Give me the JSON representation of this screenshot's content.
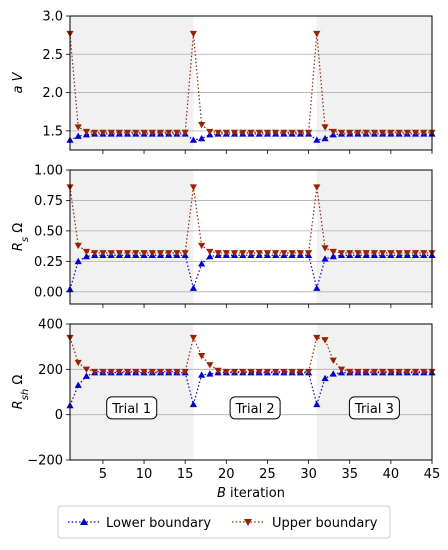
{
  "chart_data": {
    "type": "line",
    "xlabel_italic": "B",
    "xlabel_rest": " iteration",
    "xlim": [
      1,
      45
    ],
    "xticks": [
      5,
      10,
      15,
      20,
      25,
      30,
      35,
      40,
      45
    ],
    "x": [
      1,
      2,
      3,
      4,
      5,
      6,
      7,
      8,
      9,
      10,
      11,
      12,
      13,
      14,
      15,
      16,
      17,
      18,
      19,
      20,
      21,
      22,
      23,
      24,
      25,
      26,
      27,
      28,
      29,
      30,
      31,
      32,
      33,
      34,
      35,
      36,
      37,
      38,
      39,
      40,
      41,
      42,
      43,
      44,
      45
    ],
    "trials": [
      {
        "label": "Trial 1",
        "x_start": 1,
        "x_end": 16,
        "shaded": true
      },
      {
        "label": "Trial 2",
        "x_start": 16,
        "x_end": 31,
        "shaded": false
      },
      {
        "label": "Trial 3",
        "x_start": 31,
        "x_end": 45,
        "shaded": true
      }
    ],
    "legend": {
      "placement": "bottom",
      "entries": [
        {
          "label": "Lower boundary",
          "color": "#0000cc",
          "marker": "triangle-up"
        },
        {
          "label": "Upper boundary",
          "color": "#992200",
          "marker": "triangle-down"
        }
      ]
    },
    "panels": [
      {
        "ylabel": "a V",
        "ylim": [
          1.25,
          3.0
        ],
        "yticks": [
          1.5,
          2.0,
          2.5,
          3.0
        ],
        "ytick_labels": [
          "1.5",
          "2.0",
          "2.5",
          "3.0"
        ],
        "grid": true,
        "series": [
          {
            "legend_index": 0,
            "values": [
              1.38,
              1.43,
              1.45,
              1.46,
              1.46,
              1.46,
              1.46,
              1.46,
              1.46,
              1.46,
              1.46,
              1.46,
              1.46,
              1.46,
              1.46,
              1.38,
              1.4,
              1.45,
              1.46,
              1.46,
              1.46,
              1.46,
              1.46,
              1.46,
              1.46,
              1.46,
              1.46,
              1.46,
              1.46,
              1.46,
              1.38,
              1.4,
              1.45,
              1.46,
              1.46,
              1.46,
              1.46,
              1.46,
              1.46,
              1.46,
              1.46,
              1.46,
              1.46,
              1.46,
              1.46
            ]
          },
          {
            "legend_index": 1,
            "values": [
              2.77,
              1.55,
              1.49,
              1.48,
              1.48,
              1.48,
              1.48,
              1.48,
              1.48,
              1.48,
              1.48,
              1.48,
              1.48,
              1.48,
              1.48,
              2.77,
              1.58,
              1.49,
              1.48,
              1.48,
              1.48,
              1.48,
              1.48,
              1.48,
              1.48,
              1.48,
              1.48,
              1.48,
              1.48,
              1.48,
              2.77,
              1.55,
              1.49,
              1.48,
              1.48,
              1.48,
              1.48,
              1.48,
              1.48,
              1.48,
              1.48,
              1.48,
              1.48,
              1.48,
              1.48
            ]
          }
        ]
      },
      {
        "ylabel": "Rs Ω",
        "ylabel_main": "R",
        "ylabel_sub": "s",
        "ylabel_unit": " Ω",
        "ylim": [
          -0.1,
          1.0
        ],
        "yticks": [
          0.0,
          0.25,
          0.5,
          0.75,
          1.0
        ],
        "ytick_labels": [
          "0.00",
          "0.25",
          "0.50",
          "0.75",
          "1.00"
        ],
        "grid": true,
        "series": [
          {
            "legend_index": 0,
            "values": [
              0.02,
              0.25,
              0.29,
              0.3,
              0.3,
              0.3,
              0.3,
              0.3,
              0.3,
              0.3,
              0.3,
              0.3,
              0.3,
              0.3,
              0.3,
              0.03,
              0.23,
              0.29,
              0.3,
              0.3,
              0.3,
              0.3,
              0.3,
              0.3,
              0.3,
              0.3,
              0.3,
              0.3,
              0.3,
              0.3,
              0.03,
              0.27,
              0.29,
              0.3,
              0.3,
              0.3,
              0.3,
              0.3,
              0.3,
              0.3,
              0.3,
              0.3,
              0.3,
              0.3,
              0.3
            ]
          },
          {
            "legend_index": 1,
            "values": [
              0.86,
              0.38,
              0.33,
              0.32,
              0.32,
              0.32,
              0.32,
              0.32,
              0.32,
              0.32,
              0.32,
              0.32,
              0.32,
              0.32,
              0.32,
              0.86,
              0.38,
              0.33,
              0.32,
              0.32,
              0.32,
              0.32,
              0.32,
              0.32,
              0.32,
              0.32,
              0.32,
              0.32,
              0.32,
              0.32,
              0.86,
              0.36,
              0.33,
              0.32,
              0.32,
              0.32,
              0.32,
              0.32,
              0.32,
              0.32,
              0.32,
              0.32,
              0.32,
              0.32,
              0.32
            ]
          }
        ]
      },
      {
        "ylabel": "Rsh Ω",
        "ylabel_main": "R",
        "ylabel_sub": "sh",
        "ylabel_unit": " Ω",
        "ylim": [
          -200,
          400
        ],
        "yticks": [
          -200,
          0,
          200,
          400
        ],
        "ytick_labels": [
          "−200",
          "0",
          "200",
          "400"
        ],
        "grid": true,
        "series": [
          {
            "legend_index": 0,
            "values": [
              40,
              130,
              170,
              185,
              185,
              185,
              185,
              185,
              185,
              185,
              185,
              185,
              185,
              185,
              185,
              45,
              175,
              180,
              185,
              185,
              185,
              185,
              185,
              185,
              185,
              185,
              185,
              185,
              185,
              185,
              45,
              160,
              180,
              185,
              185,
              185,
              185,
              185,
              185,
              185,
              185,
              185,
              185,
              185,
              185
            ]
          },
          {
            "legend_index": 1,
            "values": [
              340,
              230,
              200,
              190,
              190,
              190,
              190,
              190,
              190,
              190,
              190,
              190,
              190,
              190,
              190,
              340,
              260,
              220,
              195,
              190,
              190,
              190,
              190,
              190,
              190,
              190,
              190,
              190,
              190,
              190,
              340,
              330,
              240,
              200,
              190,
              190,
              190,
              190,
              190,
              190,
              190,
              190,
              190,
              190,
              190
            ]
          }
        ]
      }
    ]
  }
}
